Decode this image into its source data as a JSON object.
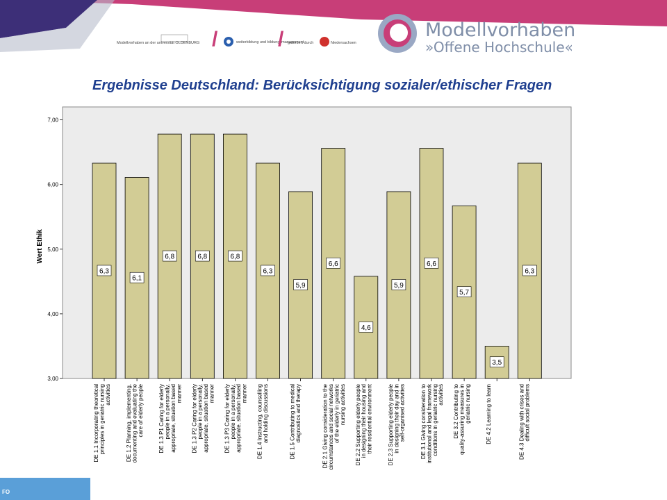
{
  "header": {
    "logo_main": "Modellvorhaben",
    "logo_sub": "»Offene Hochschule«",
    "partner_1": "Modellvorhaben an der universität OLDENBURG",
    "partner_2": "weiterbildung und bildungsmanagement",
    "partner_3": "gefördert durch",
    "partner_4": "Niedersachsen"
  },
  "title": "Ergebnisse Deutschland: Berücksichtigung sozialer/ethischer Fragen",
  "footer_text": "FO",
  "colors": {
    "bar_fill": "#d2cc95",
    "bar_stroke": "#000000",
    "plot_bg": "#ececec",
    "title": "#1f3f8f",
    "banner_magenta": "#c83e78"
  },
  "chart_data": {
    "type": "bar",
    "ylabel": "Wert Ethik",
    "xlabel": "",
    "ylim": [
      3.0,
      7.2
    ],
    "yticks": [
      "3,00",
      "4,00",
      "5,00",
      "6,00",
      "7,00"
    ],
    "grid": false,
    "categories": [
      "DE 1.1 Incorporating theoretical principles in geriatric nursing activities",
      "DE 1.2 Planning, implementing, documenting and evaluating the care of elderly people",
      "DE 1.3 P1 Caring for elderly people in a personally, appropriate, situation based manner",
      "DE 1.3 P2 Caring for elderly people in a personally, appropriate, situation based manner",
      "DE 1.3 P3 Caring for elderly people in a personally, appropriate, situation based manner",
      "DE 1.4 Instructing, counselling and holding discussions",
      "DE 1.5 Contributing to medical diagnostics and therapy",
      "DE 2.1 Giving consideration to the circumstances and social networks of the elderly in geriatric nursing activities",
      "DE 2.2 Supporting elderly people in designing their housing and their residential environment",
      "DE 2.3 Supporting elderly people in designing their day and in self-organised activities",
      "DE 3.1 Giving consideration to institutional and legal framework conditions in geriatric nursing activities",
      "DE 3.2 Contributing to quality-assuring measures in geriatric nursing",
      "DE 4.2 Learning to learn",
      "DE 4.3 Dealing with crises and difficult social problems"
    ],
    "values": [
      6.33,
      6.11,
      6.78,
      6.78,
      6.78,
      6.33,
      5.89,
      6.56,
      4.58,
      5.89,
      6.56,
      5.67,
      3.5,
      6.33
    ],
    "data_labels": [
      "6,3",
      "6,1",
      "6,8",
      "6,8",
      "6,8",
      "6,3",
      "5,9",
      "6,6",
      "4,6",
      "5,9",
      "6,6",
      "5,7",
      "3,5",
      "6,3"
    ]
  }
}
